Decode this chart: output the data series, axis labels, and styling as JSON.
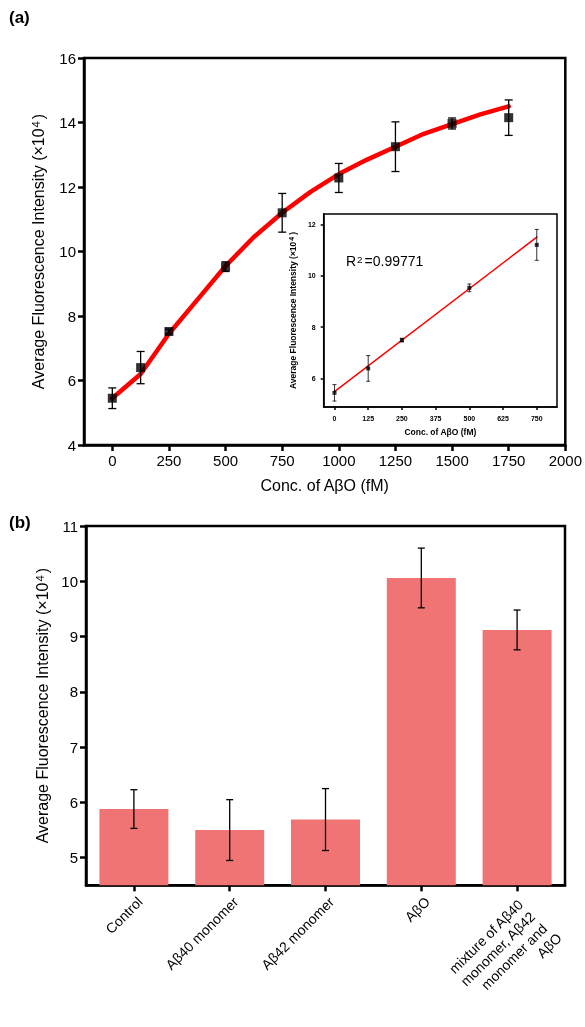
{
  "chart_data": [
    {
      "type": "scatter",
      "title": "(a)",
      "xlabel": "Conc. of AβO (fM)",
      "ylabel": "Average Fluorescence Intensity (×10$^{4}$)",
      "xlim": [
        -125,
        2000
      ],
      "xticks": [
        0,
        250,
        500,
        750,
        1000,
        1250,
        1500,
        1750,
        2000
      ],
      "ylim": [
        4,
        16
      ],
      "yticks": [
        4,
        6,
        8,
        10,
        12,
        14,
        16
      ],
      "grid": false,
      "series": [
        {
          "type": "scatter",
          "marker": "square",
          "color": "#000000",
          "x": [
            0,
            125,
            250,
            500,
            750,
            1000,
            1250,
            1500,
            1750
          ],
          "values": [
            5.45,
            6.4,
            7.52,
            9.53,
            11.2,
            12.28,
            13.25,
            13.97,
            14.15
          ],
          "errors": [
            0.32,
            0.5,
            0.07,
            0.15,
            0.6,
            0.45,
            0.77,
            0.17,
            0.55
          ]
        },
        {
          "type": "line",
          "marker": "none",
          "color": "#ff0000",
          "x": [
            0,
            125,
            250,
            375,
            500,
            625,
            750,
            875,
            1000,
            1125,
            1250,
            1375,
            1500,
            1625,
            1750
          ],
          "values": [
            5.45,
            6.2,
            7.45,
            8.5,
            9.55,
            10.45,
            11.2,
            11.85,
            12.4,
            12.85,
            13.25,
            13.65,
            13.95,
            14.25,
            14.5
          ]
        }
      ]
    },
    {
      "type": "scatter",
      "xlabel": "Conc. of AβO (fM)",
      "ylabel": "Average Fluorescence Intensity (×10$^{4}$)",
      "xlim": [
        -40,
        825
      ],
      "xticks": [
        0,
        125,
        250,
        375,
        500,
        625,
        750
      ],
      "ylim": [
        4.9,
        12.4
      ],
      "yticks": [
        6,
        8,
        10,
        12
      ],
      "grid": false,
      "annotations": [
        "R$^{2}$=0.99771"
      ],
      "series": [
        {
          "type": "scatter",
          "marker": "square",
          "color": "#000000",
          "x": [
            0,
            125,
            250,
            500,
            750
          ],
          "values": [
            5.45,
            6.4,
            7.5,
            9.53,
            11.2
          ],
          "errors": [
            0.32,
            0.5,
            0.07,
            0.15,
            0.6
          ]
        },
        {
          "type": "line",
          "marker": "none",
          "color": "#ff0000",
          "x": [
            0,
            750
          ],
          "values": [
            5.5,
            11.5
          ]
        }
      ]
    },
    {
      "type": "bar",
      "title": "(b)",
      "ylabel": "Average Fluorescence Intensity (×10$^{4}$)",
      "categories": [
        "Control",
        "Aβ40 monomer",
        "Aβ42 monomer",
        "AβO",
        "mixture of Aβ40 monomer, Aβ42 monomer and AβO"
      ],
      "ylim": [
        4.5,
        11
      ],
      "yticks": [
        5,
        6,
        7,
        8,
        9,
        10,
        11
      ],
      "grid": false,
      "series": [
        {
          "color": "#f07474",
          "values": [
            5.88,
            5.5,
            5.69,
            10.06,
            9.12
          ],
          "errors": [
            0.35,
            0.55,
            0.56,
            0.54,
            0.36
          ]
        }
      ]
    }
  ]
}
